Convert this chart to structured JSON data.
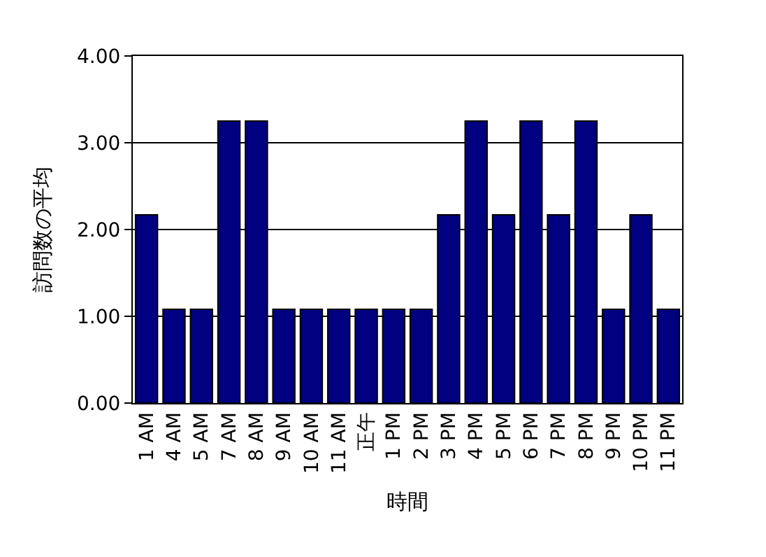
{
  "chart_data": {
    "type": "bar",
    "xlabel": "時間",
    "ylabel": "訪問数の平均",
    "categories": [
      "1 AM",
      "4 AM",
      "5 AM",
      "7 AM",
      "8 AM",
      "9 AM",
      "10 AM",
      "11 AM",
      "正午",
      "1 PM",
      "2 PM",
      "3 PM",
      "4 PM",
      "5 PM",
      "6 PM",
      "7 PM",
      "8 PM",
      "9 PM",
      "10 PM",
      "11 PM"
    ],
    "values": [
      2.17,
      1.08,
      1.08,
      3.25,
      3.25,
      1.08,
      1.08,
      1.08,
      1.08,
      1.08,
      1.08,
      2.17,
      3.25,
      2.17,
      3.25,
      2.17,
      3.25,
      1.08,
      2.17,
      1.08
    ],
    "color": "#000080",
    "ylim": [
      0,
      4
    ],
    "yticks": [
      {
        "value": 0,
        "label": "0.00"
      },
      {
        "value": 1,
        "label": "1.00"
      },
      {
        "value": 2,
        "label": "2.00"
      },
      {
        "value": 3,
        "label": "3.00"
      },
      {
        "value": 4,
        "label": "4.00"
      }
    ],
    "grid": "y",
    "legend": false
  }
}
